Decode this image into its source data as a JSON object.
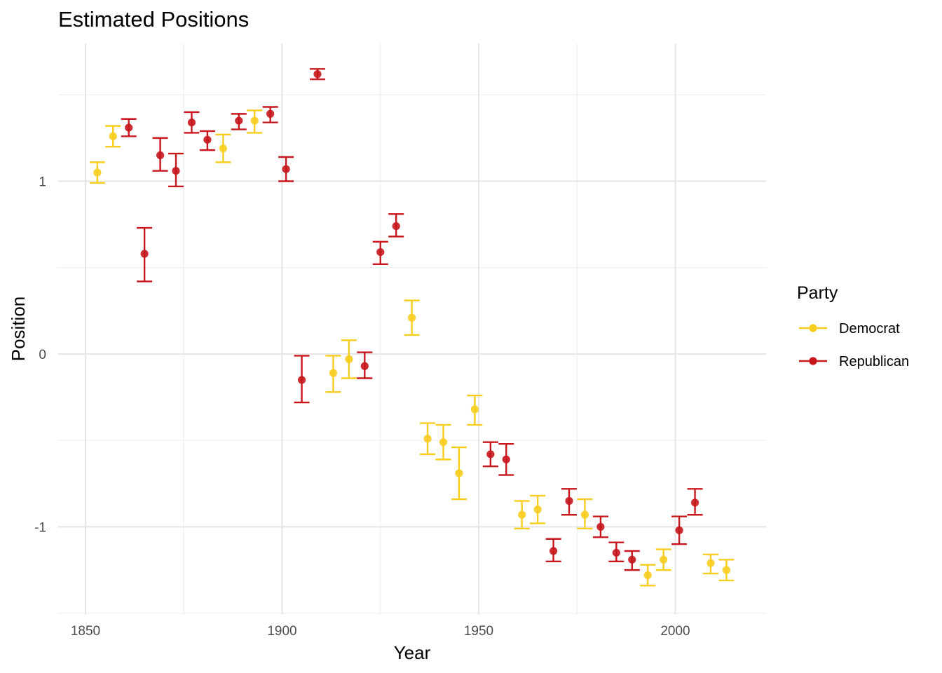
{
  "chart_data": {
    "type": "scatter",
    "title": "Estimated Positions",
    "xlabel": "Year",
    "ylabel": "Position",
    "xlim": [
      1847,
      2023
    ],
    "ylim": [
      -1.5,
      1.8
    ],
    "x_ticks": [
      1850,
      1900,
      1950,
      2000
    ],
    "y_ticks": [
      -1,
      0,
      1
    ],
    "x_tick_labels": [
      "1850",
      "1900",
      "1950",
      "2000"
    ],
    "y_tick_labels": [
      "-1",
      "0",
      "1"
    ],
    "grid": true,
    "legend": {
      "title": "Party",
      "position": "right",
      "entries": [
        "Democrat",
        "Republican"
      ]
    },
    "colors": {
      "Democrat": "#f7cd1e",
      "Republican": "#c7161c"
    },
    "series": [
      {
        "name": "Democrat",
        "points": [
          {
            "x": 1853,
            "y": 1.05,
            "lo": 0.99,
            "hi": 1.11
          },
          {
            "x": 1857,
            "y": 1.26,
            "lo": 1.2,
            "hi": 1.32
          },
          {
            "x": 1885,
            "y": 1.19,
            "lo": 1.11,
            "hi": 1.27
          },
          {
            "x": 1893,
            "y": 1.35,
            "lo": 1.28,
            "hi": 1.41
          },
          {
            "x": 1913,
            "y": -0.11,
            "lo": -0.22,
            "hi": -0.01
          },
          {
            "x": 1917,
            "y": -0.03,
            "lo": -0.14,
            "hi": 0.08
          },
          {
            "x": 1933,
            "y": 0.21,
            "lo": 0.11,
            "hi": 0.31
          },
          {
            "x": 1937,
            "y": -0.49,
            "lo": -0.58,
            "hi": -0.4
          },
          {
            "x": 1941,
            "y": -0.51,
            "lo": -0.61,
            "hi": -0.41
          },
          {
            "x": 1945,
            "y": -0.69,
            "lo": -0.84,
            "hi": -0.54
          },
          {
            "x": 1949,
            "y": -0.32,
            "lo": -0.41,
            "hi": -0.24
          },
          {
            "x": 1961,
            "y": -0.93,
            "lo": -1.01,
            "hi": -0.85
          },
          {
            "x": 1965,
            "y": -0.9,
            "lo": -0.98,
            "hi": -0.82
          },
          {
            "x": 1977,
            "y": -0.93,
            "lo": -1.01,
            "hi": -0.84
          },
          {
            "x": 1993,
            "y": -1.28,
            "lo": -1.34,
            "hi": -1.22
          },
          {
            "x": 1997,
            "y": -1.19,
            "lo": -1.25,
            "hi": -1.13
          },
          {
            "x": 2009,
            "y": -1.21,
            "lo": -1.27,
            "hi": -1.16
          },
          {
            "x": 2013,
            "y": -1.25,
            "lo": -1.31,
            "hi": -1.19
          }
        ]
      },
      {
        "name": "Republican",
        "points": [
          {
            "x": 1861,
            "y": 1.31,
            "lo": 1.26,
            "hi": 1.36
          },
          {
            "x": 1865,
            "y": 0.58,
            "lo": 0.42,
            "hi": 0.73
          },
          {
            "x": 1869,
            "y": 1.15,
            "lo": 1.06,
            "hi": 1.25
          },
          {
            "x": 1873,
            "y": 1.06,
            "lo": 0.97,
            "hi": 1.16
          },
          {
            "x": 1877,
            "y": 1.34,
            "lo": 1.28,
            "hi": 1.4
          },
          {
            "x": 1881,
            "y": 1.24,
            "lo": 1.18,
            "hi": 1.29
          },
          {
            "x": 1889,
            "y": 1.35,
            "lo": 1.3,
            "hi": 1.39
          },
          {
            "x": 1897,
            "y": 1.39,
            "lo": 1.34,
            "hi": 1.43
          },
          {
            "x": 1901,
            "y": 1.07,
            "lo": 1.0,
            "hi": 1.14
          },
          {
            "x": 1905,
            "y": -0.15,
            "lo": -0.28,
            "hi": -0.01
          },
          {
            "x": 1909,
            "y": 1.62,
            "lo": 1.59,
            "hi": 1.65
          },
          {
            "x": 1921,
            "y": -0.07,
            "lo": -0.14,
            "hi": 0.01
          },
          {
            "x": 1925,
            "y": 0.59,
            "lo": 0.52,
            "hi": 0.65
          },
          {
            "x": 1929,
            "y": 0.74,
            "lo": 0.68,
            "hi": 0.81
          },
          {
            "x": 1953,
            "y": -0.58,
            "lo": -0.65,
            "hi": -0.51
          },
          {
            "x": 1957,
            "y": -0.61,
            "lo": -0.7,
            "hi": -0.52
          },
          {
            "x": 1969,
            "y": -1.14,
            "lo": -1.2,
            "hi": -1.07
          },
          {
            "x": 1973,
            "y": -0.85,
            "lo": -0.93,
            "hi": -0.78
          },
          {
            "x": 1981,
            "y": -1.0,
            "lo": -1.06,
            "hi": -0.94
          },
          {
            "x": 1985,
            "y": -1.15,
            "lo": -1.2,
            "hi": -1.09
          },
          {
            "x": 1989,
            "y": -1.19,
            "lo": -1.25,
            "hi": -1.14
          },
          {
            "x": 2001,
            "y": -1.02,
            "lo": -1.1,
            "hi": -0.94
          },
          {
            "x": 2005,
            "y": -0.86,
            "lo": -0.93,
            "hi": -0.78
          }
        ]
      }
    ]
  }
}
